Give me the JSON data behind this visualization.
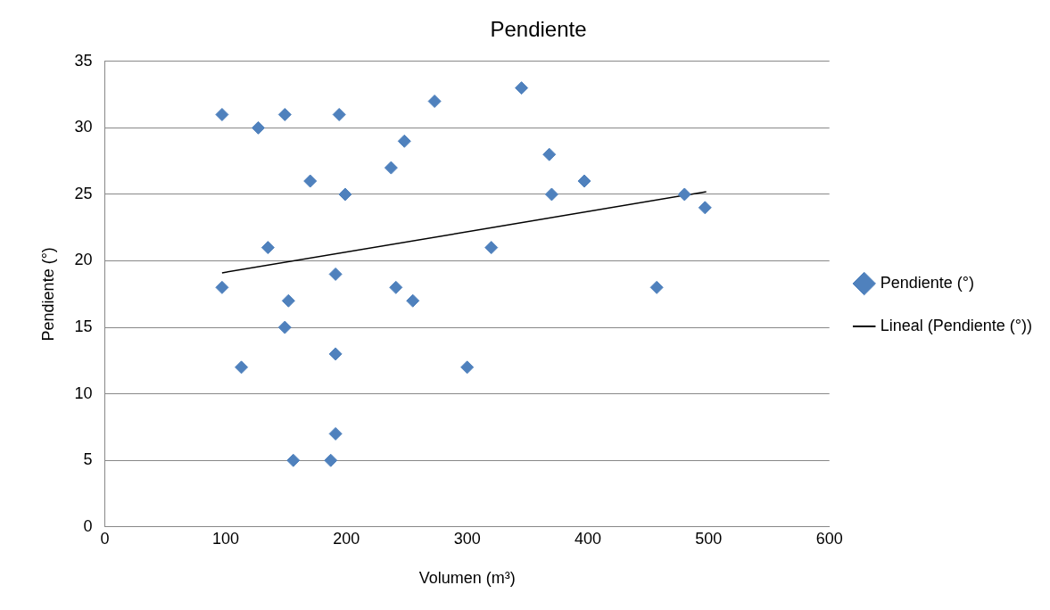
{
  "chart_data": {
    "type": "scatter",
    "title": "Pendiente",
    "xlabel": "Volumen (m³)",
    "ylabel": "Pendiente (°)",
    "xlim": [
      0,
      600
    ],
    "ylim": [
      0,
      35
    ],
    "xticks": [
      0,
      100,
      200,
      300,
      400,
      500,
      600
    ],
    "yticks": [
      0,
      5,
      10,
      15,
      20,
      25,
      30,
      35
    ],
    "grid": "y",
    "legend": "right",
    "marker": "diamond",
    "series": [
      {
        "name": "Pendiente (°)",
        "type": "scatter",
        "color": "#4f81bd",
        "x": [
          97,
          127,
          149,
          194,
          273,
          345,
          170,
          199,
          237,
          248,
          368,
          370,
          397,
          480,
          497,
          135,
          320,
          97,
          191,
          241,
          255,
          152,
          457,
          149,
          113,
          300,
          191,
          191,
          156,
          187
        ],
        "values": [
          31,
          30,
          31,
          31,
          32,
          33,
          26,
          25,
          27,
          29,
          28,
          25,
          26,
          25,
          24,
          21,
          21,
          18,
          19,
          18,
          17,
          17,
          18,
          15,
          12,
          12,
          13,
          7,
          5,
          5
        ]
      },
      {
        "name": "Lineal (Pendiente (°))",
        "type": "line",
        "color": "#000000",
        "marker": "none",
        "line_style": "solid",
        "x": [
          97,
          498
        ],
        "values": [
          19.1,
          25.2
        ]
      }
    ]
  }
}
